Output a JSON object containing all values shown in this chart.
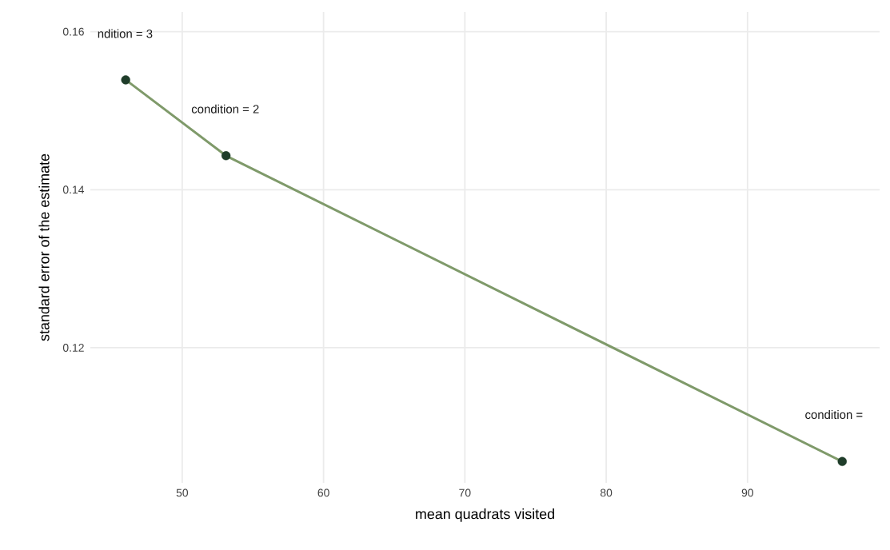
{
  "chart_data": {
    "type": "line",
    "xlabel": "mean quadrats visited",
    "ylabel": "standard error of the estimate",
    "x": [
      46.0,
      53.1,
      96.7
    ],
    "series": [
      {
        "color": "#7f9a6a",
        "values": [
          0.1539,
          0.1443,
          0.1056
        ]
      },
      {
        "type": "scatter",
        "marker": "circle",
        "color": "#1f3d2a",
        "values": [
          0.1539,
          0.1443,
          0.1056
        ]
      }
    ],
    "line_style": "solid",
    "grid": true,
    "xlim": [
      43.5,
      99.35
    ],
    "ylim": [
      0.1029,
      0.1625
    ],
    "xticks": [
      50,
      60,
      70,
      80,
      90
    ],
    "yticks": [
      0.12,
      0.14,
      0.16
    ],
    "annotations": [
      "ndition = 3",
      "condition = 2",
      "condition ="
    ]
  }
}
